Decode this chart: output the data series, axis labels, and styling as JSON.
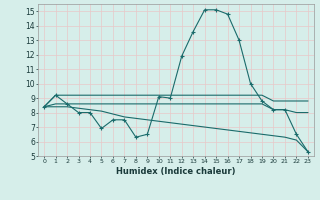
{
  "xlabel": "Humidex (Indice chaleur)",
  "xlim": [
    -0.5,
    23.5
  ],
  "ylim": [
    5,
    15.5
  ],
  "yticks": [
    5,
    6,
    7,
    8,
    9,
    10,
    11,
    12,
    13,
    14,
    15
  ],
  "xticks": [
    0,
    1,
    2,
    3,
    4,
    5,
    6,
    7,
    8,
    9,
    10,
    11,
    12,
    13,
    14,
    15,
    16,
    17,
    18,
    19,
    20,
    21,
    22,
    23
  ],
  "bg_color": "#d6eeea",
  "grid_color": "#e8c8c8",
  "line_color": "#1a6b6b",
  "line1_x": [
    0,
    1,
    2,
    3,
    4,
    5,
    6,
    7,
    8,
    9,
    10,
    11,
    12,
    13,
    14,
    15,
    16,
    17,
    18,
    19,
    20,
    21,
    22,
    23
  ],
  "line1_y": [
    8.4,
    9.2,
    8.6,
    8.0,
    8.0,
    6.9,
    7.5,
    7.5,
    6.3,
    6.5,
    9.1,
    9.0,
    11.9,
    13.6,
    15.1,
    15.1,
    14.8,
    13.0,
    10.0,
    8.8,
    8.2,
    8.2,
    6.5,
    5.3
  ],
  "line2_x": [
    0,
    1,
    2,
    3,
    4,
    5,
    6,
    7,
    8,
    9,
    10,
    11,
    12,
    13,
    14,
    15,
    16,
    17,
    18,
    19,
    20,
    21,
    22,
    23
  ],
  "line2_y": [
    8.4,
    9.2,
    9.2,
    9.2,
    9.2,
    9.2,
    9.2,
    9.2,
    9.2,
    9.2,
    9.2,
    9.2,
    9.2,
    9.2,
    9.2,
    9.2,
    9.2,
    9.2,
    9.2,
    9.2,
    8.8,
    8.8,
    8.8,
    8.8
  ],
  "line3_x": [
    0,
    1,
    2,
    3,
    4,
    5,
    6,
    7,
    8,
    9,
    10,
    11,
    12,
    13,
    14,
    15,
    16,
    17,
    18,
    19,
    20,
    21,
    22,
    23
  ],
  "line3_y": [
    8.4,
    8.6,
    8.6,
    8.6,
    8.6,
    8.6,
    8.6,
    8.6,
    8.6,
    8.6,
    8.6,
    8.6,
    8.6,
    8.6,
    8.6,
    8.6,
    8.6,
    8.6,
    8.6,
    8.6,
    8.2,
    8.2,
    8.0,
    8.0
  ],
  "line4_x": [
    0,
    1,
    2,
    3,
    4,
    5,
    6,
    7,
    8,
    9,
    10,
    11,
    12,
    13,
    14,
    15,
    16,
    17,
    18,
    19,
    20,
    21,
    22,
    23
  ],
  "line4_y": [
    8.4,
    8.4,
    8.4,
    8.3,
    8.2,
    8.1,
    7.9,
    7.7,
    7.6,
    7.5,
    7.4,
    7.3,
    7.2,
    7.1,
    7.0,
    6.9,
    6.8,
    6.7,
    6.6,
    6.5,
    6.4,
    6.3,
    6.1,
    5.3
  ]
}
